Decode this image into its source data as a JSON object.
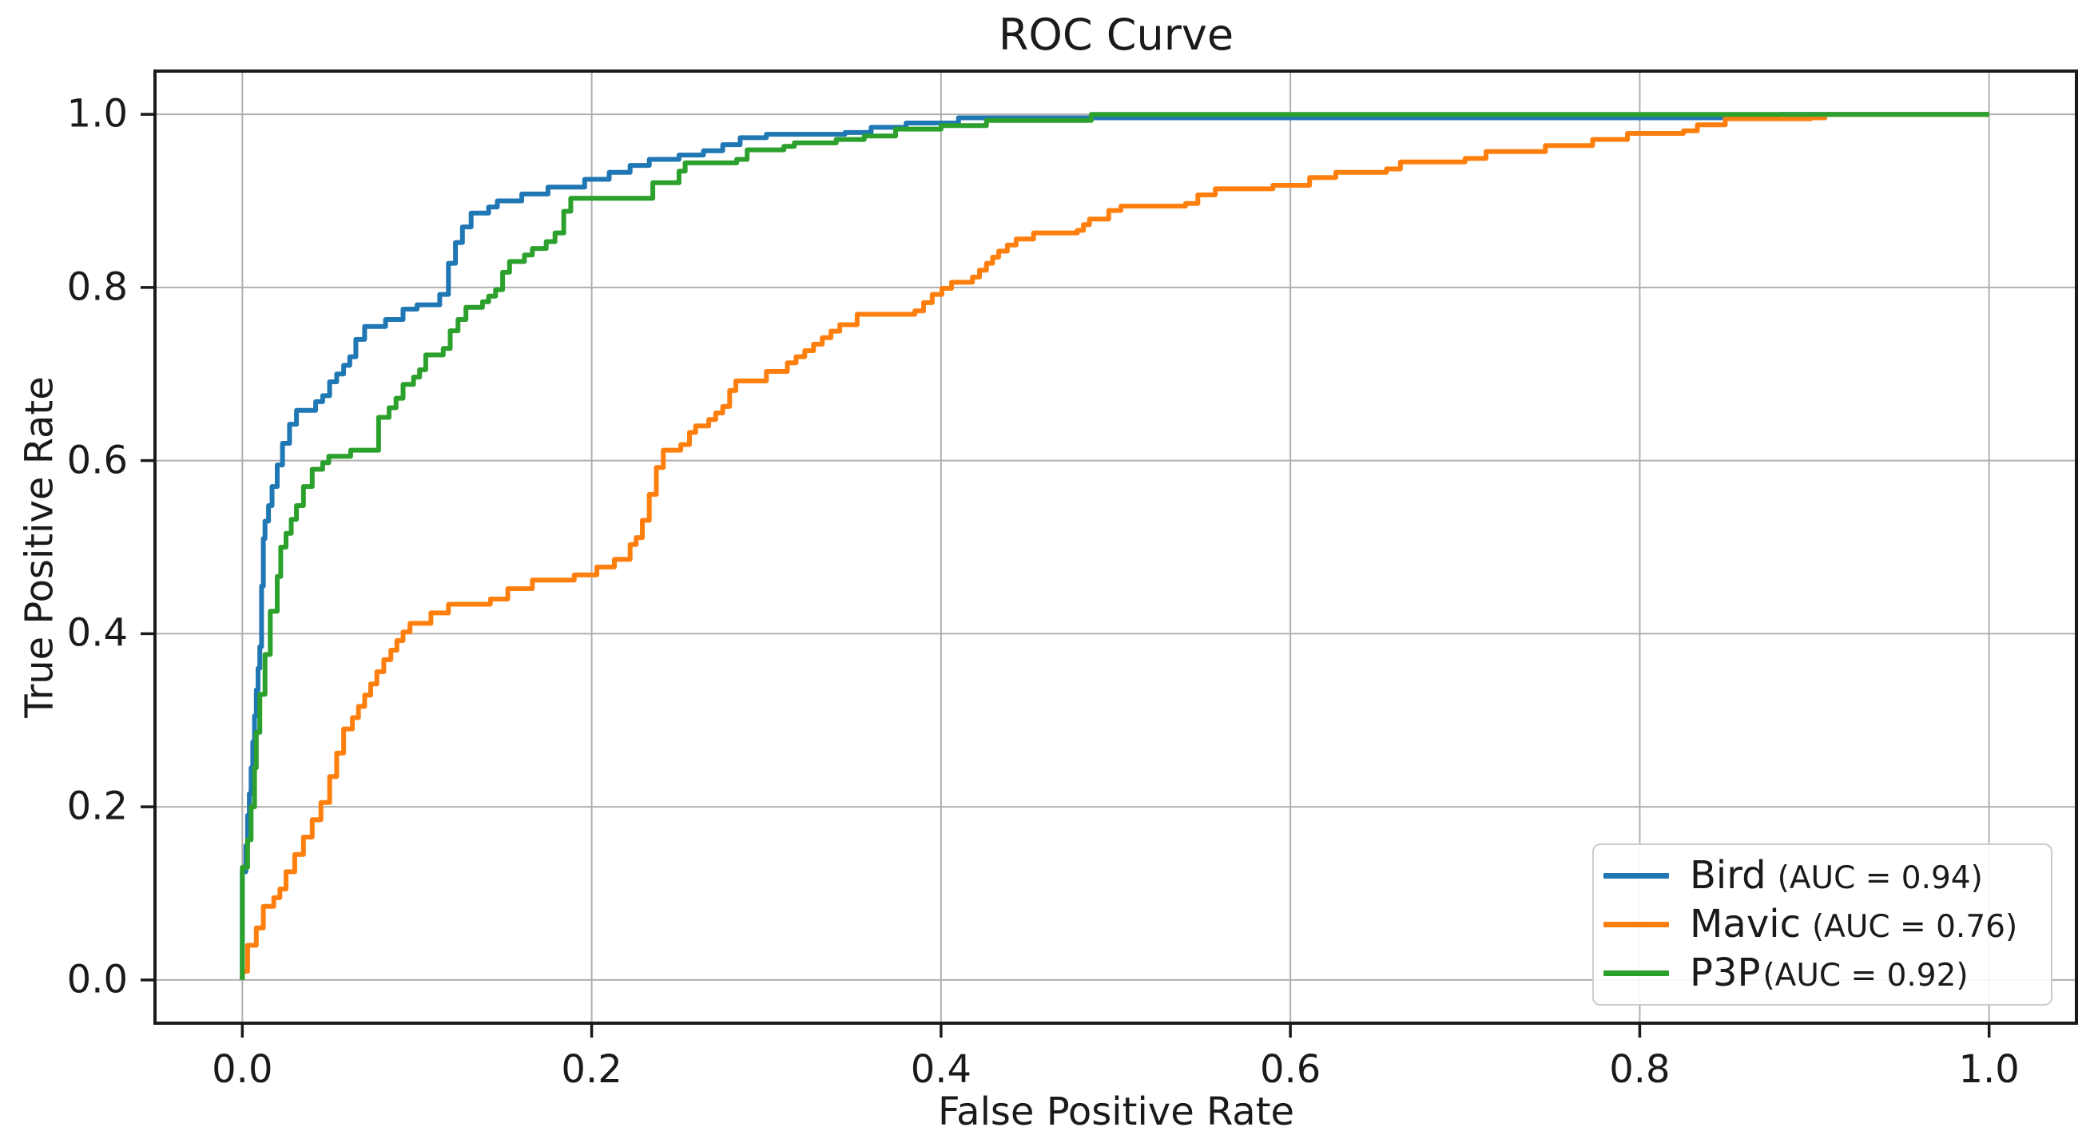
{
  "figure": {
    "background": "#ffffff",
    "text_color": "#1a1a1a"
  },
  "chart_data": {
    "type": "line",
    "subtype": "roc-step-curves",
    "title": "ROC Curve",
    "xlabel": "False Positive Rate",
    "ylabel": "True Positive Rate",
    "x_ticks": [
      "0.0",
      "0.2",
      "0.4",
      "0.6",
      "0.8",
      "1.0"
    ],
    "y_ticks": [
      "0.0",
      "0.2",
      "0.4",
      "0.6",
      "0.8",
      "1.0"
    ],
    "x_tick_values": [
      0.0,
      0.2,
      0.4,
      0.6,
      0.8,
      1.0
    ],
    "y_tick_values": [
      0.0,
      0.2,
      0.4,
      0.6,
      0.8,
      1.0
    ],
    "xlim": [
      -0.05,
      1.05
    ],
    "ylim": [
      -0.05,
      1.05
    ],
    "grid": true,
    "grid_color": "#b0b0b0",
    "spine_color": "#1a1a1a",
    "legend": {
      "position": "lower right",
      "entries": [
        {
          "name": "Bird",
          "auc_text": "(AUC = 0.94)",
          "color": "#1f77b4"
        },
        {
          "name": "Mavic",
          "auc_text": "(AUC = 0.76)",
          "color": "#ff7f0e"
        },
        {
          "name": "P3P",
          "auc_text": "(AUC = 0.92)",
          "color": "#2ca02c"
        }
      ]
    },
    "series": [
      {
        "name": "Bird",
        "auc": 0.94,
        "color": "#1f77b4",
        "points": [
          [
            0.0,
            0.0
          ],
          [
            0.0,
            0.105
          ],
          [
            0.002,
            0.125
          ],
          [
            0.003,
            0.155
          ],
          [
            0.004,
            0.19
          ],
          [
            0.005,
            0.215
          ],
          [
            0.006,
            0.245
          ],
          [
            0.007,
            0.275
          ],
          [
            0.008,
            0.305
          ],
          [
            0.009,
            0.335
          ],
          [
            0.01,
            0.36
          ],
          [
            0.011,
            0.385
          ],
          [
            0.012,
            0.455
          ],
          [
            0.013,
            0.51
          ],
          [
            0.015,
            0.53
          ],
          [
            0.017,
            0.548
          ],
          [
            0.02,
            0.57
          ],
          [
            0.023,
            0.595
          ],
          [
            0.027,
            0.62
          ],
          [
            0.031,
            0.642
          ],
          [
            0.036,
            0.658
          ],
          [
            0.042,
            0.668
          ],
          [
            0.05,
            0.682
          ],
          [
            0.058,
            0.7
          ],
          [
            0.065,
            0.72
          ],
          [
            0.07,
            0.74
          ],
          [
            0.073,
            0.755
          ],
          [
            0.082,
            0.763
          ],
          [
            0.092,
            0.775
          ],
          [
            0.1,
            0.78
          ],
          [
            0.113,
            0.792
          ],
          [
            0.118,
            0.8
          ],
          [
            0.122,
            0.828
          ],
          [
            0.126,
            0.852
          ],
          [
            0.131,
            0.87
          ],
          [
            0.136,
            0.886
          ],
          [
            0.146,
            0.9
          ],
          [
            0.16,
            0.908
          ],
          [
            0.175,
            0.916
          ],
          [
            0.196,
            0.925
          ],
          [
            0.21,
            0.933
          ],
          [
            0.222,
            0.941
          ],
          [
            0.233,
            0.948
          ],
          [
            0.25,
            0.953
          ],
          [
            0.264,
            0.958
          ],
          [
            0.275,
            0.965
          ],
          [
            0.285,
            0.973
          ],
          [
            0.3,
            0.977
          ],
          [
            0.345,
            0.979
          ],
          [
            0.36,
            0.985
          ],
          [
            0.38,
            0.99
          ],
          [
            0.41,
            0.996
          ],
          [
            0.86,
            0.996
          ],
          [
            0.88,
            1.0
          ],
          [
            1.0,
            1.0
          ]
        ]
      },
      {
        "name": "Mavic",
        "auc": 0.76,
        "color": "#ff7f0e",
        "points": [
          [
            0.0,
            0.0
          ],
          [
            0.003,
            0.01
          ],
          [
            0.008,
            0.04
          ],
          [
            0.012,
            0.06
          ],
          [
            0.018,
            0.085
          ],
          [
            0.025,
            0.105
          ],
          [
            0.03,
            0.125
          ],
          [
            0.035,
            0.145
          ],
          [
            0.04,
            0.165
          ],
          [
            0.045,
            0.185
          ],
          [
            0.05,
            0.205
          ],
          [
            0.054,
            0.235
          ],
          [
            0.058,
            0.262
          ],
          [
            0.063,
            0.29
          ],
          [
            0.07,
            0.316
          ],
          [
            0.077,
            0.342
          ],
          [
            0.085,
            0.37
          ],
          [
            0.092,
            0.392
          ],
          [
            0.1,
            0.412
          ],
          [
            0.108,
            0.424
          ],
          [
            0.118,
            0.434
          ],
          [
            0.142,
            0.44
          ],
          [
            0.152,
            0.452
          ],
          [
            0.166,
            0.462
          ],
          [
            0.19,
            0.468
          ],
          [
            0.203,
            0.477
          ],
          [
            0.213,
            0.486
          ],
          [
            0.222,
            0.495
          ],
          [
            0.229,
            0.511
          ],
          [
            0.233,
            0.531
          ],
          [
            0.237,
            0.561
          ],
          [
            0.241,
            0.592
          ],
          [
            0.246,
            0.612
          ],
          [
            0.256,
            0.625
          ],
          [
            0.263,
            0.64
          ],
          [
            0.271,
            0.655
          ],
          [
            0.279,
            0.67
          ],
          [
            0.286,
            0.692
          ],
          [
            0.3,
            0.703
          ],
          [
            0.312,
            0.713
          ],
          [
            0.322,
            0.727
          ],
          [
            0.332,
            0.742
          ],
          [
            0.342,
            0.757
          ],
          [
            0.352,
            0.769
          ],
          [
            0.385,
            0.773
          ],
          [
            0.395,
            0.792
          ],
          [
            0.406,
            0.806
          ],
          [
            0.418,
            0.812
          ],
          [
            0.426,
            0.828
          ],
          [
            0.433,
            0.842
          ],
          [
            0.443,
            0.856
          ],
          [
            0.453,
            0.863
          ],
          [
            0.478,
            0.866
          ],
          [
            0.485,
            0.879
          ],
          [
            0.496,
            0.889
          ],
          [
            0.503,
            0.894
          ],
          [
            0.54,
            0.897
          ],
          [
            0.547,
            0.907
          ],
          [
            0.557,
            0.914
          ],
          [
            0.59,
            0.918
          ],
          [
            0.611,
            0.927
          ],
          [
            0.626,
            0.933
          ],
          [
            0.655,
            0.937
          ],
          [
            0.663,
            0.945
          ],
          [
            0.7,
            0.949
          ],
          [
            0.712,
            0.957
          ],
          [
            0.746,
            0.964
          ],
          [
            0.773,
            0.971
          ],
          [
            0.793,
            0.978
          ],
          [
            0.825,
            0.981
          ],
          [
            0.833,
            0.988
          ],
          [
            0.849,
            0.995
          ],
          [
            0.898,
            0.996
          ],
          [
            0.906,
            1.0
          ],
          [
            1.0,
            1.0
          ]
        ]
      },
      {
        "name": "P3P",
        "auc": 0.92,
        "color": "#2ca02c",
        "points": [
          [
            0.0,
            0.0
          ],
          [
            0.0,
            0.1
          ],
          [
            0.003,
            0.13
          ],
          [
            0.005,
            0.162
          ],
          [
            0.007,
            0.2
          ],
          [
            0.008,
            0.245
          ],
          [
            0.01,
            0.286
          ],
          [
            0.013,
            0.33
          ],
          [
            0.016,
            0.376
          ],
          [
            0.02,
            0.426
          ],
          [
            0.022,
            0.466
          ],
          [
            0.025,
            0.5
          ],
          [
            0.028,
            0.516
          ],
          [
            0.031,
            0.532
          ],
          [
            0.035,
            0.548
          ],
          [
            0.04,
            0.57
          ],
          [
            0.046,
            0.59
          ],
          [
            0.053,
            0.605
          ],
          [
            0.062,
            0.612
          ],
          [
            0.078,
            0.618
          ],
          [
            0.084,
            0.65
          ],
          [
            0.092,
            0.672
          ],
          [
            0.098,
            0.688
          ],
          [
            0.105,
            0.705
          ],
          [
            0.111,
            0.722
          ],
          [
            0.119,
            0.737
          ],
          [
            0.128,
            0.763
          ],
          [
            0.134,
            0.777
          ],
          [
            0.141,
            0.79
          ],
          [
            0.149,
            0.805
          ],
          [
            0.157,
            0.83
          ],
          [
            0.166,
            0.845
          ],
          [
            0.174,
            0.853
          ],
          [
            0.184,
            0.873
          ],
          [
            0.192,
            0.903
          ],
          [
            0.235,
            0.906
          ],
          [
            0.241,
            0.921
          ],
          [
            0.25,
            0.925
          ],
          [
            0.257,
            0.944
          ],
          [
            0.283,
            0.948
          ],
          [
            0.289,
            0.959
          ],
          [
            0.31,
            0.963
          ],
          [
            0.316,
            0.967
          ],
          [
            0.34,
            0.971
          ],
          [
            0.356,
            0.975
          ],
          [
            0.374,
            0.983
          ],
          [
            0.4,
            0.987
          ],
          [
            0.426,
            0.993
          ],
          [
            0.486,
            1.0
          ],
          [
            1.0,
            1.0
          ]
        ]
      }
    ]
  }
}
